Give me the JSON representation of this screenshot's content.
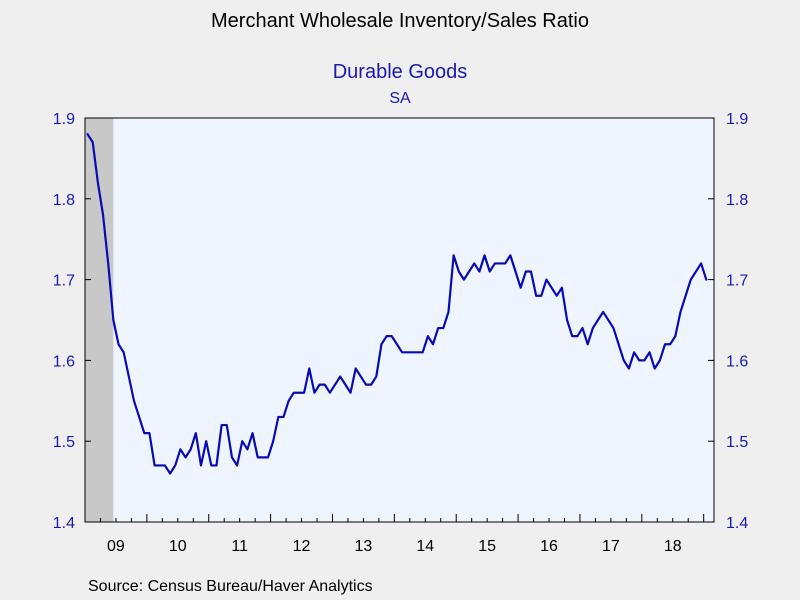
{
  "title": "Merchant Wholesale Inventory/Sales Ratio",
  "subtitle": "Durable Goods",
  "subtitle2": "SA",
  "source": "Source:  Census Bureau/Haver Analytics",
  "colors": {
    "line": "#0a0ab4",
    "plot_bg": "#eef5fe",
    "axis_text": "#1a1ab0",
    "recession": "#c8c8c8"
  },
  "chart_data": {
    "type": "line",
    "title": "Durable Goods",
    "ylim": [
      1.4,
      1.9
    ],
    "yticks": [
      "1.4",
      "1.5",
      "1.6",
      "1.7",
      "1.8",
      "1.9"
    ],
    "x_start": 2009,
    "x_end": 2019.1667,
    "xtick_labels": [
      "09",
      "10",
      "11",
      "12",
      "13",
      "14",
      "15",
      "16",
      "17",
      "18"
    ],
    "recession_band": [
      2009.0,
      2009.4583
    ],
    "series": [
      {
        "frequency": "monthly",
        "start": "2009-01",
        "values": [
          1.88,
          1.87,
          1.82,
          1.78,
          1.72,
          1.65,
          1.62,
          1.61,
          1.58,
          1.55,
          1.53,
          1.51,
          1.51,
          1.47,
          1.47,
          1.47,
          1.46,
          1.47,
          1.49,
          1.48,
          1.49,
          1.51,
          1.47,
          1.5,
          1.47,
          1.47,
          1.52,
          1.52,
          1.48,
          1.47,
          1.5,
          1.49,
          1.51,
          1.48,
          1.48,
          1.48,
          1.5,
          1.53,
          1.53,
          1.55,
          1.56,
          1.56,
          1.56,
          1.59,
          1.56,
          1.57,
          1.57,
          1.56,
          1.57,
          1.58,
          1.57,
          1.56,
          1.59,
          1.58,
          1.57,
          1.57,
          1.58,
          1.62,
          1.63,
          1.63,
          1.62,
          1.61,
          1.61,
          1.61,
          1.61,
          1.61,
          1.63,
          1.62,
          1.64,
          1.64,
          1.66,
          1.73,
          1.71,
          1.7,
          1.71,
          1.72,
          1.71,
          1.73,
          1.71,
          1.72,
          1.72,
          1.72,
          1.73,
          1.71,
          1.69,
          1.71,
          1.71,
          1.68,
          1.68,
          1.7,
          1.69,
          1.68,
          1.69,
          1.65,
          1.63,
          1.63,
          1.64,
          1.62,
          1.64,
          1.65,
          1.66,
          1.65,
          1.64,
          1.62,
          1.6,
          1.59,
          1.61,
          1.6,
          1.6,
          1.61,
          1.59,
          1.6,
          1.62,
          1.62,
          1.63,
          1.66,
          1.68,
          1.7,
          1.71,
          1.72,
          1.7
        ]
      }
    ]
  }
}
